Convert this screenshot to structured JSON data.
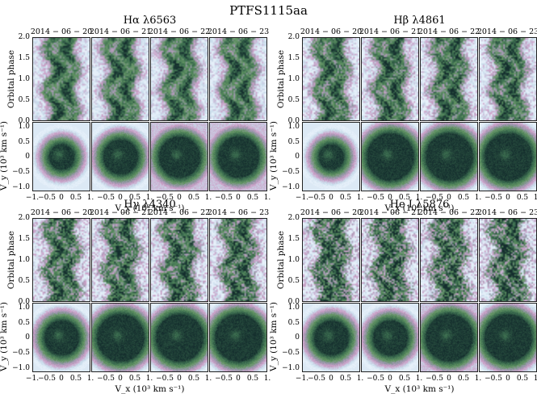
{
  "figure_title": "PTFS1115aa",
  "dates": [
    "2014 − 06 − 20",
    "2014 − 06 − 21",
    "2014 − 06 − 22",
    "2014 − 06 − 23"
  ],
  "lines": [
    {
      "name": "Hα λ6563",
      "tomogram_styles": [
        "small-dark-ring",
        "medium-dark-ring",
        "filled-rotated",
        "filled-rotated"
      ]
    },
    {
      "name": "Hβ λ4861",
      "tomogram_styles": [
        "small-dark-ring",
        "large-dark-disk",
        "large-dark-disk",
        "large-dark-disk"
      ]
    },
    {
      "name": "Hγ λ4340",
      "tomogram_styles": [
        "medium-dark-ring",
        "large-dark-disk",
        "large-dark-disk",
        "large-dark-disk"
      ]
    },
    {
      "name": "He I λ5876",
      "tomogram_styles": [
        "medium-dark-ring",
        "medium-dark-ring",
        "filled-dark-polygon",
        "large-dark-disk"
      ]
    }
  ],
  "axes": {
    "trail_ylabel": "Orbital phase",
    "trail_yticks": [
      "2.0",
      "1.5",
      "1.0",
      "0.5",
      "0.0"
    ],
    "tomo_ylabel": "V_y (10³ km s⁻¹)",
    "tomo_yticks": [
      "1.0",
      "0.5",
      "0",
      "−0.5",
      "−1.0"
    ],
    "xlabel": "V_x (10³ km s⁻¹)",
    "xticks": [
      "−1.",
      "−0.5",
      "0",
      "0.5",
      "1."
    ]
  },
  "colors": {
    "dark": "#1a3a35",
    "mid": "#4d8a4f",
    "light": "#c8ddea",
    "pink": "#c98fb8",
    "outer": "#b4b9e0"
  }
}
